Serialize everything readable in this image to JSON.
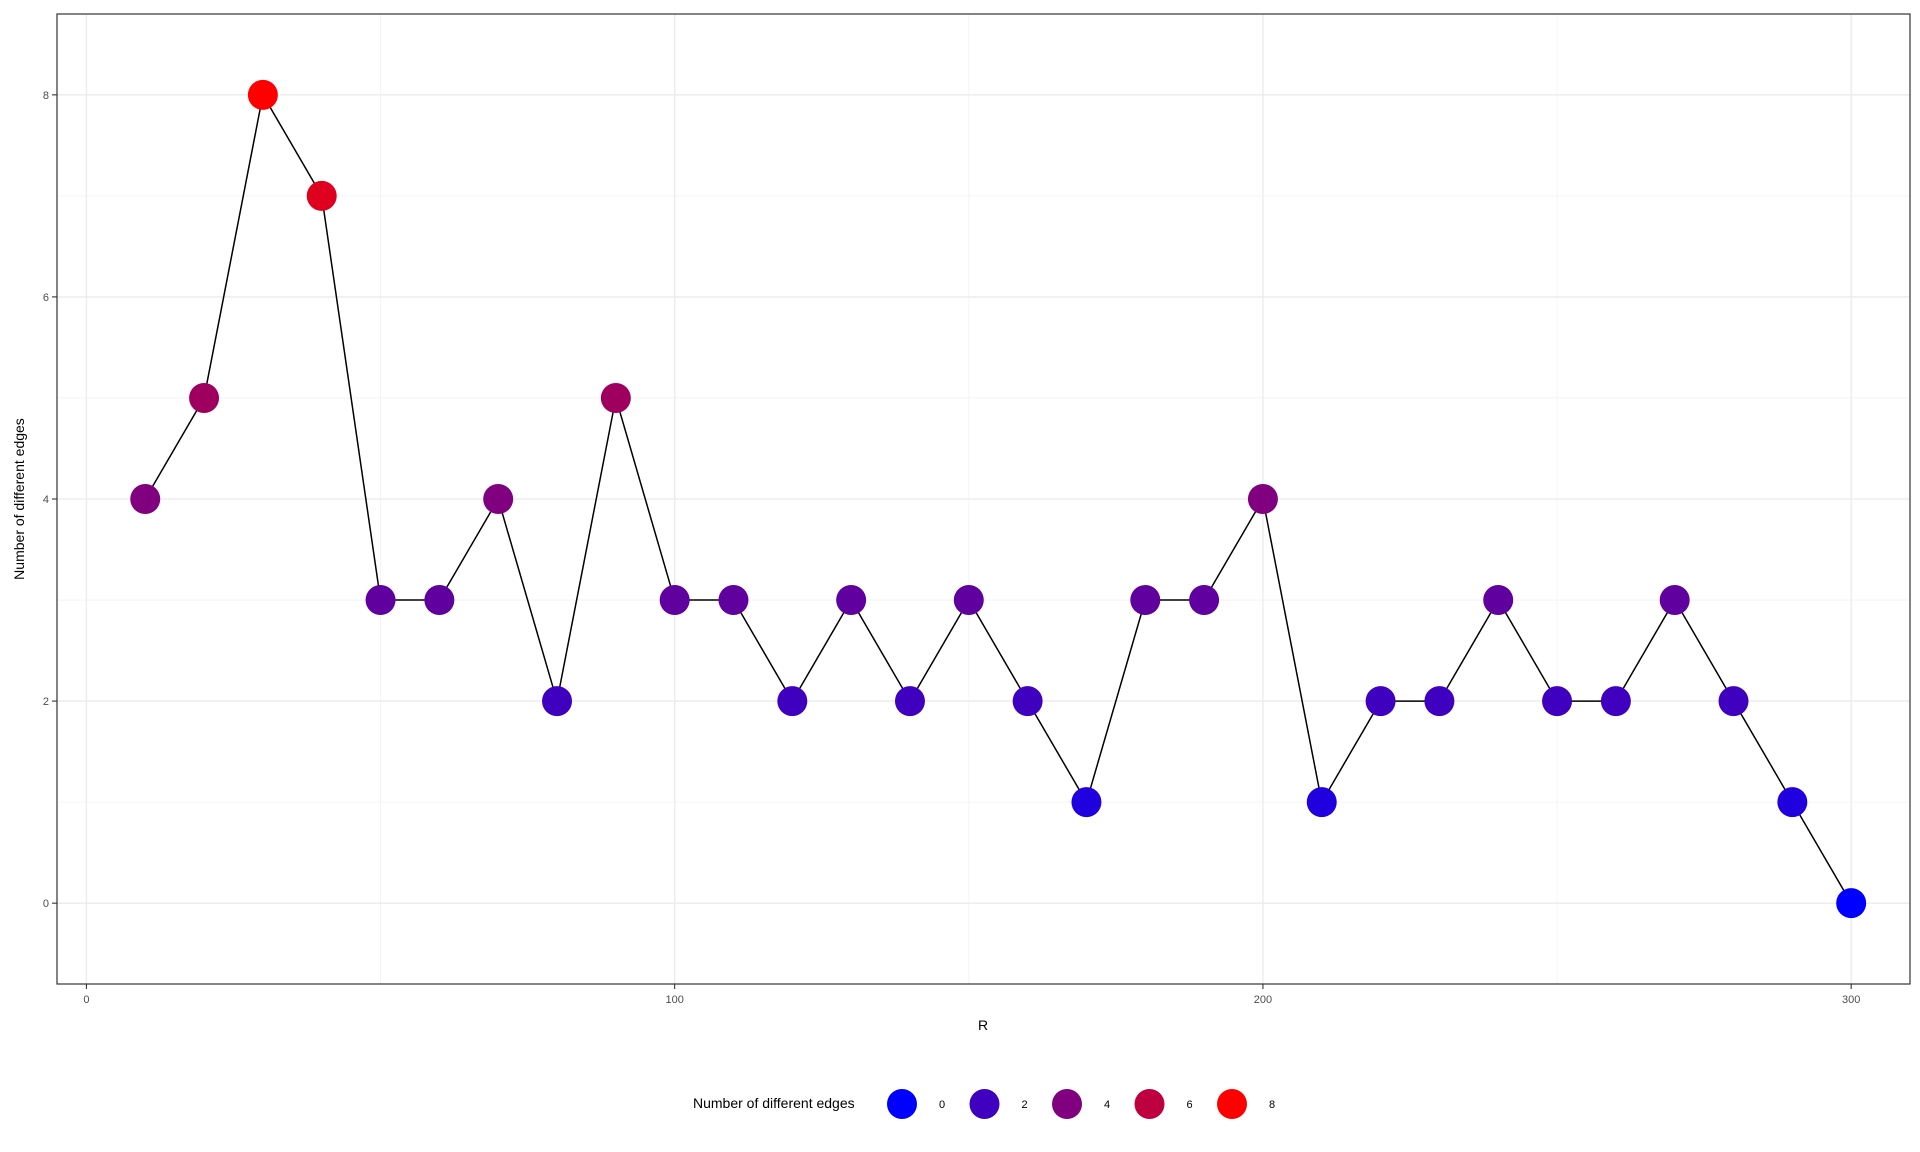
{
  "chart_data": {
    "type": "line",
    "title": "",
    "xlabel": "R",
    "ylabel": "Number of different edges",
    "xlim": [
      -5,
      310
    ],
    "ylim": [
      -0.8,
      8.8
    ],
    "xticks": [
      0,
      100,
      200,
      300
    ],
    "yticks": [
      0,
      2,
      4,
      6,
      8
    ],
    "x_tick_labels": [
      "0",
      "100",
      "200",
      "300"
    ],
    "y_tick_labels": [
      "0",
      "2",
      "4",
      "6",
      "8"
    ],
    "grid": true,
    "legend_position": "bottom",
    "series": [
      {
        "x": [
          10,
          20,
          30,
          40,
          50,
          60,
          70,
          80,
          90,
          100,
          110,
          120,
          130,
          140,
          150,
          160,
          170,
          180,
          190,
          200,
          210,
          220,
          230,
          240,
          250,
          260,
          270,
          280,
          290,
          300
        ],
        "y": [
          4,
          5,
          8,
          7,
          3,
          3,
          4,
          2,
          5,
          3,
          3,
          2,
          3,
          2,
          3,
          2,
          1,
          3,
          3,
          4,
          1,
          2,
          2,
          3,
          2,
          2,
          3,
          2,
          1,
          0
        ],
        "line_color": "#000000"
      }
    ],
    "color_scale": {
      "title": "Number of different edges",
      "low": "#0000ff",
      "high": "#ff0000",
      "breaks": [
        0,
        2,
        4,
        6,
        8
      ],
      "labels": [
        "0",
        "2",
        "4",
        "6",
        "8"
      ]
    }
  }
}
